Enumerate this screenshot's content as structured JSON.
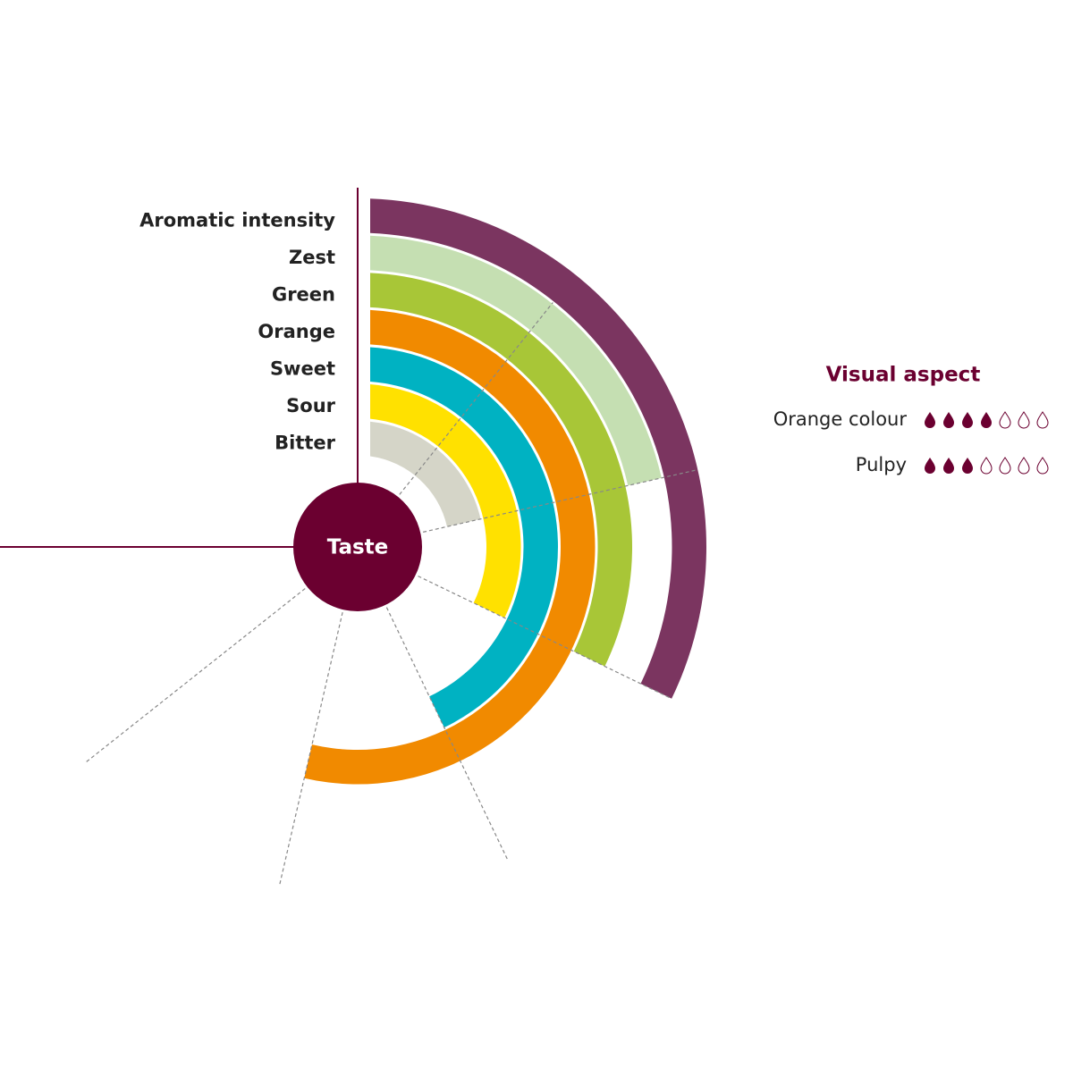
{
  "chart_data": {
    "type": "radial-bar",
    "center_label": "Taste",
    "categories": [
      "Aromatic intensity",
      "Zest",
      "Green",
      "Orange",
      "Sweet",
      "Sour",
      "Bitter"
    ],
    "values": [
      3,
      2,
      3,
      5,
      4,
      3,
      2
    ],
    "colors": [
      "#7b3560",
      "#c5dfb2",
      "#a8c637",
      "#f18a00",
      "#00b2c2",
      "#ffe100",
      "#d5d5c8"
    ],
    "ticks": [
      1,
      2,
      3,
      4,
      5,
      6
    ]
  },
  "visual_aspect": {
    "title": "Visual aspect",
    "items": [
      {
        "label": "Orange colour",
        "value": 4,
        "max": 7
      },
      {
        "label": "Pulpy",
        "value": 3,
        "max": 7
      }
    ],
    "color": "#6b0030"
  }
}
